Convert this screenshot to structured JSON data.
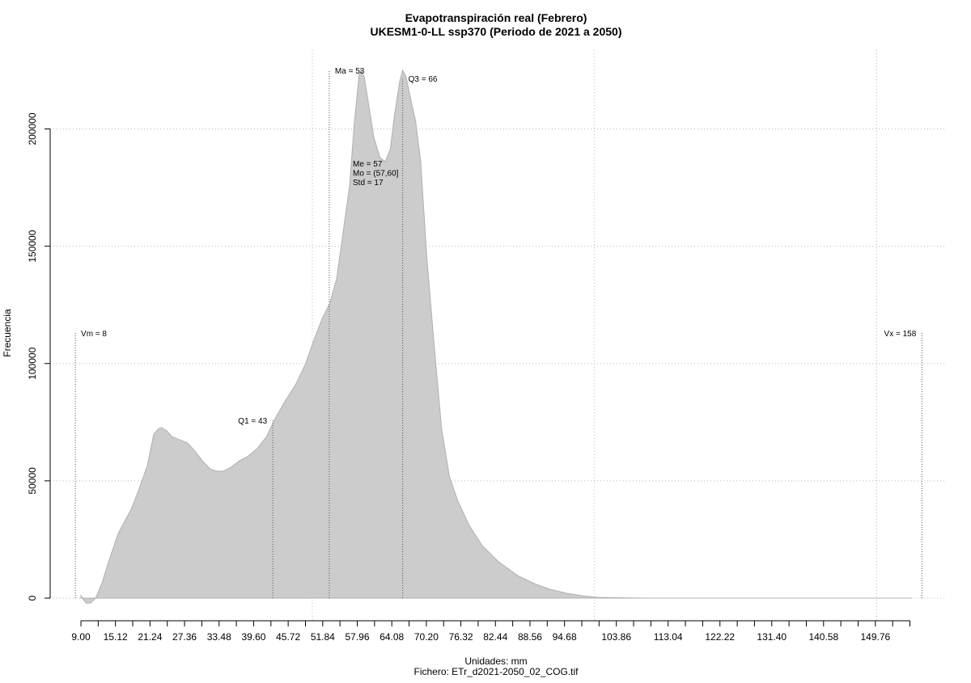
{
  "chart_data": {
    "type": "area",
    "title": "Evapotranspiración real (Febrero)",
    "subtitle": "UKESM1-0-LL ssp370 (Periodo de 2021 a 2050)",
    "x_label": "Unidades: mm",
    "file_label": "Fichero: ETr_d2021-2050_02_COG.tif",
    "y_label": "Frecuencia",
    "color": "#cccccc",
    "x": [
      9.0,
      9.9,
      10.7,
      11.6,
      12.7,
      13.9,
      15.6,
      17.9,
      19.3,
      20.8,
      21.9,
      22.8,
      23.3,
      24.2,
      25.1,
      26.5,
      27.9,
      29.1,
      30.5,
      31.9,
      33.1,
      34.2,
      35.6,
      37.1,
      38.5,
      40.2,
      41.9,
      43.4,
      45.1,
      47.1,
      48.8,
      50.3,
      51.7,
      53.1,
      54.3,
      55.4,
      56.6,
      57.4,
      58.3,
      58.6,
      59.2,
      60.0,
      60.9,
      62.0,
      62.9,
      63.8,
      64.6,
      65.5,
      66.0,
      66.6,
      67.5,
      68.3,
      69.2,
      70.3,
      71.5,
      72.9,
      74.3,
      75.8,
      77.8,
      80.1,
      83.0,
      86.4,
      89.3,
      92.1,
      95.0,
      97.9,
      100.7,
      109.3,
      156.3
    ],
    "values": [
      1000,
      -2100,
      -2100,
      0,
      6200,
      15500,
      27600,
      37900,
      46500,
      56800,
      69900,
      72300,
      72700,
      71300,
      68900,
      67500,
      66100,
      63000,
      58600,
      55100,
      54100,
      54100,
      55800,
      58600,
      60300,
      63700,
      68900,
      76500,
      83700,
      91300,
      99900,
      110200,
      118900,
      125700,
      136100,
      155000,
      175700,
      201500,
      223200,
      225000,
      222200,
      210100,
      196400,
      187800,
      186000,
      191200,
      206700,
      220500,
      225000,
      222200,
      211900,
      203200,
      186000,
      144700,
      110200,
      72300,
      51700,
      41300,
      31000,
      22400,
      15500,
      9600,
      6200,
      3800,
      2100,
      1000,
      300,
      0,
      0
    ],
    "xlim": [
      3.55,
      162.4
    ],
    "ylim": [
      -9647,
      233600
    ],
    "xticks": [
      {
        "value": 9,
        "label": "9.00"
      },
      15.12,
      21.24,
      27.36,
      33.48,
      {
        "value": 39.6,
        "label": "39.60"
      },
      45.72,
      51.84,
      57.96,
      64.08,
      {
        "value": 70.2,
        "label": "70.20"
      },
      76.32,
      82.44,
      88.56,
      94.68,
      103.86,
      113.04,
      122.22,
      {
        "value": 131.4,
        "label": "131.40"
      },
      140.58,
      149.76
    ],
    "xminor_ticks": [
      12.06,
      18.18,
      24.3,
      30.42,
      36.54,
      42.66,
      48.78,
      54.9,
      61.02,
      67.14,
      73.26,
      79.38,
      85.5,
      91.62,
      97.74,
      100.8,
      106.92,
      109.98,
      116.1,
      119.16,
      125.28,
      128.34,
      134.46,
      137.52,
      143.64,
      146.7,
      152.82,
      155.88
    ],
    "yticks": [
      0,
      50000,
      100000,
      150000,
      200000
    ],
    "xgrid": [
      50,
      100,
      150
    ],
    "grid": true,
    "annotations": [
      {
        "label": "Vm = 8",
        "x": 8,
        "y": 113000,
        "side": "right"
      },
      {
        "label": "Q1 = 43",
        "x": 43,
        "y": 75800,
        "side": "left"
      },
      {
        "label": "Ma = 53",
        "x": 53,
        "y": 225000,
        "side": "right"
      },
      {
        "label": "Q3 = 66",
        "x": 66,
        "y": 221500,
        "side": "right"
      },
      {
        "label": "Vx = 158",
        "x": 158,
        "y": 113000,
        "side": "left"
      }
    ],
    "stats": [
      "Me = 57",
      "Mo = (57,60]",
      "Std = 17"
    ]
  }
}
